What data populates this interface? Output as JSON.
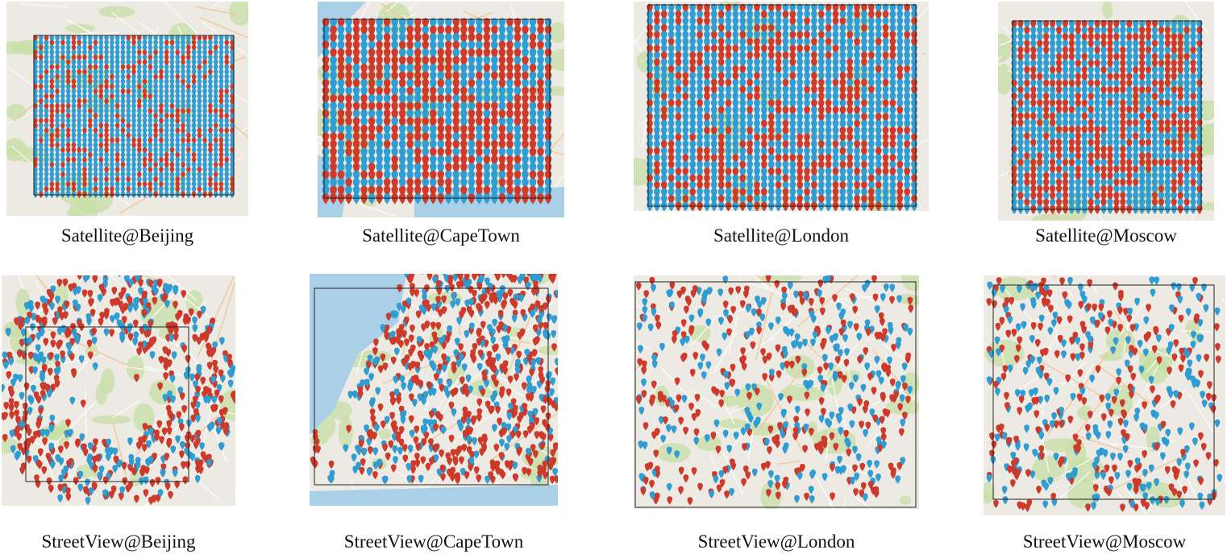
{
  "colors": {
    "marker_red": "#d13a2a",
    "marker_blue": "#2e9fd6",
    "map_land": "#eceae3",
    "map_green": "#c7dfa6",
    "map_water": "#a9d0e6",
    "map_road": "#f3c79a",
    "bbox_line": "#222222"
  },
  "legend_note": "",
  "panels": [
    {
      "caption": "Satellite@Beijing",
      "kind": "satellite",
      "pin_color_share": {
        "red": 0.3,
        "blue": 0.7
      }
    },
    {
      "caption": "Satellite@CapeTown",
      "kind": "satellite",
      "pin_color_share": {
        "red": 0.55,
        "blue": 0.45
      }
    },
    {
      "caption": "Satellite@London",
      "kind": "satellite",
      "pin_color_share": {
        "red": 0.35,
        "blue": 0.65
      }
    },
    {
      "caption": "Satellite@Moscow",
      "kind": "satellite",
      "pin_color_share": {
        "red": 0.45,
        "blue": 0.55
      }
    },
    {
      "caption": "StreetView@Beijing",
      "kind": "streetview",
      "pin_color_share": {
        "red": 0.6,
        "blue": 0.4
      }
    },
    {
      "caption": "StreetView@CapeTown",
      "kind": "streetview",
      "pin_color_share": {
        "red": 0.6,
        "blue": 0.4
      }
    },
    {
      "caption": "StreetView@London",
      "kind": "streetview",
      "pin_color_share": {
        "red": 0.55,
        "blue": 0.45
      }
    },
    {
      "caption": "StreetView@Moscow",
      "kind": "streetview",
      "pin_color_share": {
        "red": 0.5,
        "blue": 0.5
      }
    }
  ]
}
